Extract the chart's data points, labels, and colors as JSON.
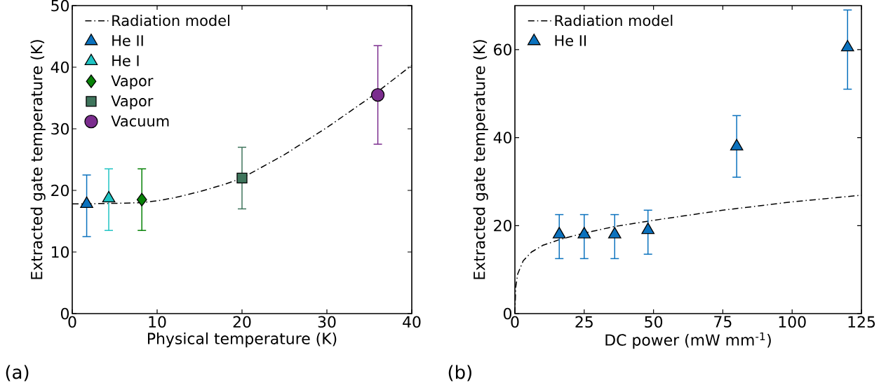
{
  "chart_data": [
    {
      "type": "scatter",
      "xlabel": "Physical temperature (K)",
      "ylabel": "Extracted gate temperature (K)",
      "xlim": [
        0,
        40
      ],
      "ylim": [
        0,
        50
      ],
      "xticks": [
        0,
        10,
        20,
        30,
        40
      ],
      "yticks": [
        0,
        10,
        20,
        30,
        40,
        50
      ],
      "legend": "top left",
      "grid": false,
      "annotations": [
        "(a)"
      ],
      "series": [
        {
          "name": "Radiation model",
          "type": "line",
          "line_style": "dashdot",
          "marker": "none",
          "color": "#000000",
          "x": [
            0,
            5,
            8,
            10,
            12,
            15,
            18,
            20,
            25,
            30,
            35,
            40
          ],
          "values": [
            17.8,
            17.9,
            18.0,
            18.3,
            18.8,
            19.8,
            21,
            22,
            25.8,
            30.2,
            35,
            40.3
          ]
        },
        {
          "name": "He II",
          "marker": "triangle",
          "color": "#0b72be",
          "x": [
            1.7
          ],
          "values": [
            17.8
          ],
          "errors": [
            [
              12.5,
              22.5
            ]
          ]
        },
        {
          "name": "He I",
          "marker": "triangle",
          "color": "#1fc4c4",
          "x": [
            4.3
          ],
          "values": [
            18.7
          ],
          "errors": [
            [
              13.5,
              23.5
            ]
          ]
        },
        {
          "name": "Vapor",
          "marker": "diamond",
          "color": "#078207",
          "x": [
            8.2
          ],
          "values": [
            18.5
          ],
          "errors": [
            [
              13.5,
              23.5
            ]
          ]
        },
        {
          "name": "Vapor",
          "marker": "square",
          "color": "#3f755c",
          "x": [
            20
          ],
          "values": [
            22
          ],
          "errors": [
            [
              17,
              27
            ]
          ]
        },
        {
          "name": "Vacuum",
          "marker": "circle",
          "color": "#7b2d8e",
          "x": [
            36
          ],
          "values": [
            35.5
          ],
          "errors": [
            [
              27.5,
              43.5
            ]
          ]
        }
      ]
    },
    {
      "type": "scatter",
      "xlabel": "DC power (mW mm$^{-1}$)",
      "ylabel": "Extracted gate temperature (K)",
      "xlim": [
        0,
        125
      ],
      "ylim": [
        0,
        70
      ],
      "xticks": [
        0,
        25,
        50,
        75,
        100,
        125
      ],
      "yticks": [
        0,
        20,
        40,
        60
      ],
      "legend": "top left",
      "grid": false,
      "annotations": [
        "(b)"
      ],
      "series": [
        {
          "name": "Radiation model",
          "type": "line",
          "line_style": "dashdot",
          "marker": "none",
          "color": "#000000",
          "x": [
            0,
            0.3,
            1,
            3,
            6,
            10,
            16,
            25,
            36,
            50,
            75,
            100,
            125
          ],
          "values": [
            0,
            6,
            9,
            12,
            14,
            15.5,
            16.8,
            18.3,
            19.8,
            21.2,
            23.5,
            25.4,
            26.9
          ]
        },
        {
          "name": "He II",
          "marker": "triangle",
          "color": "#0b72be",
          "x": [
            16,
            25,
            36,
            48,
            80,
            120
          ],
          "values": [
            18,
            18,
            18,
            19,
            38,
            60.5
          ],
          "errors": [
            [
              12.5,
              22.5
            ],
            [
              12.5,
              22.5
            ],
            [
              12.5,
              22.5
            ],
            [
              13.5,
              23.5
            ],
            [
              31,
              45
            ],
            [
              51,
              69
            ]
          ]
        }
      ]
    }
  ]
}
